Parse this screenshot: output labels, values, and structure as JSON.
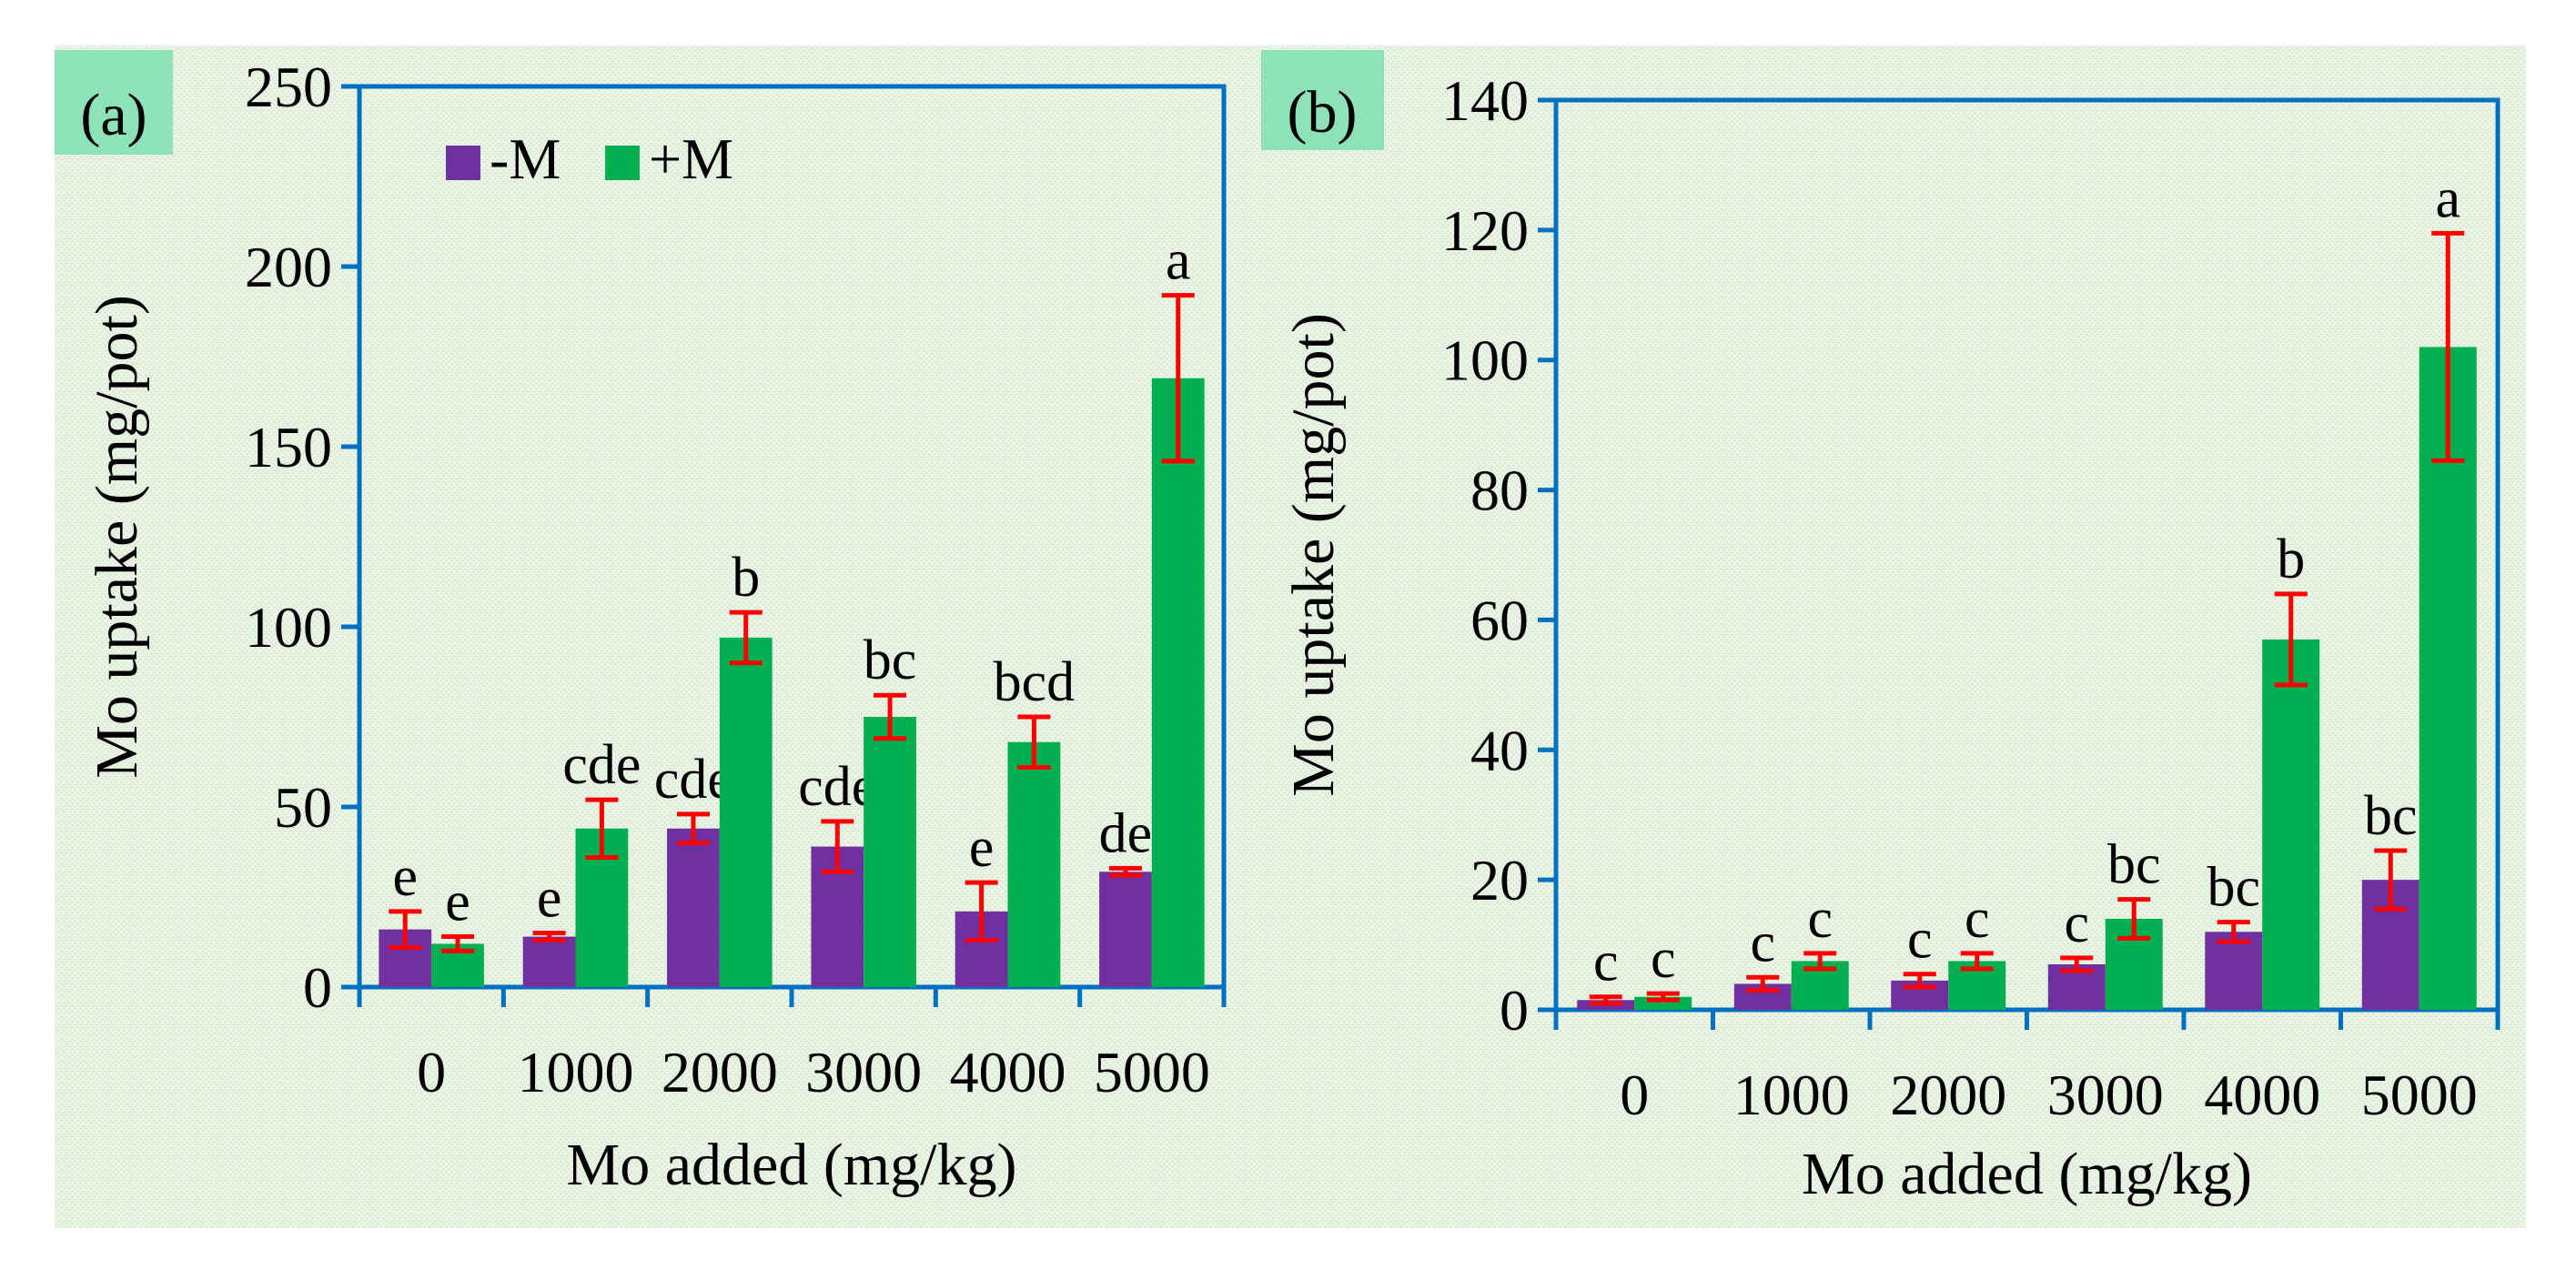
{
  "colors": {
    "minus_m": "#7030A0",
    "plus_m": "#00B050",
    "error_bar": "#FF0000",
    "axis": "#0070C0",
    "background": "#E4F1DF",
    "label_box": "#8EE2B8"
  },
  "chart_data": [
    {
      "type": "bar",
      "panel_label": "(a)",
      "xlabel": "Mo added (mg/kg)",
      "ylabel": "Mo uptake (mg/pot)",
      "categories": [
        "0",
        "1000",
        "2000",
        "3000",
        "4000",
        "5000"
      ],
      "ylim": [
        0,
        250
      ],
      "yticks": [
        "0",
        "50",
        "100",
        "150",
        "200",
        "250"
      ],
      "ytick_values": [
        0,
        50,
        100,
        150,
        200,
        250
      ],
      "legend": {
        "position": "top-left",
        "entries": [
          "-M",
          "+M"
        ]
      },
      "series": [
        {
          "name": "-M",
          "values": [
            16,
            14,
            44,
            39,
            21,
            32
          ],
          "errors": [
            5,
            1,
            4,
            7,
            8,
            1
          ],
          "letters": [
            "e",
            "e",
            "cde",
            "cde",
            "e",
            "de"
          ]
        },
        {
          "name": "+M",
          "values": [
            12,
            44,
            97,
            75,
            68,
            169
          ],
          "errors": [
            2,
            8,
            7,
            6,
            7,
            23
          ],
          "letters": [
            "e",
            "cde",
            "b",
            "bc",
            "bcd",
            "a"
          ]
        }
      ]
    },
    {
      "type": "bar",
      "panel_label": "(b)",
      "xlabel": "Mo added (mg/kg)",
      "ylabel": "Mo uptake (mg/pot)",
      "categories": [
        "0",
        "1000",
        "2000",
        "3000",
        "4000",
        "5000"
      ],
      "ylim": [
        0,
        140
      ],
      "yticks": [
        "0",
        "20",
        "40",
        "60",
        "80",
        "100",
        "120",
        "140"
      ],
      "ytick_values": [
        0,
        20,
        40,
        60,
        80,
        100,
        120,
        140
      ],
      "series": [
        {
          "name": "-M",
          "values": [
            1.5,
            4,
            4.5,
            7,
            12,
            20
          ],
          "errors": [
            0.5,
            1,
            1,
            1,
            1.5,
            4.5
          ],
          "letters": [
            "c",
            "c",
            "c",
            "c",
            "bc",
            "bc"
          ]
        },
        {
          "name": "+M",
          "values": [
            2,
            7.5,
            7.5,
            14,
            57,
            102
          ],
          "errors": [
            0.5,
            1.2,
            1.2,
            3,
            7,
            17.5
          ],
          "letters": [
            "c",
            "c",
            "c",
            "bc",
            "b",
            "a"
          ]
        }
      ]
    }
  ]
}
